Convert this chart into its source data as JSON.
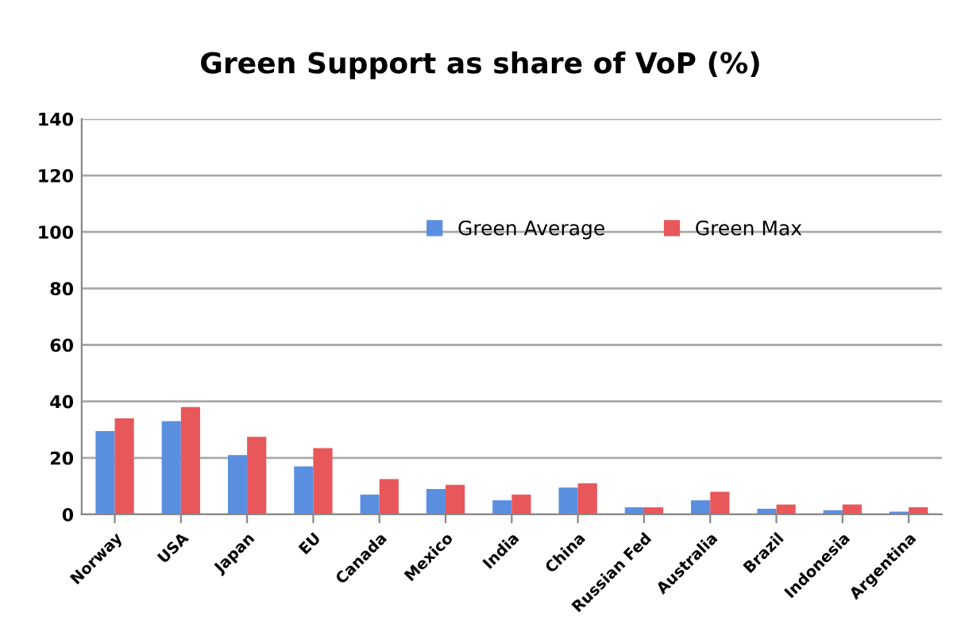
{
  "chart_data": {
    "type": "bar",
    "title": "Green Support as share of VoP (%)",
    "categories": [
      "Norway",
      "USA",
      "Japan",
      "EU",
      "Canada",
      "Mexico",
      "India",
      "China",
      "Russian Fed",
      "Australia",
      "Brazil",
      "Indonesia",
      "Argentina"
    ],
    "series": [
      {
        "name": "Green Average",
        "color": "#5a8fe0",
        "values": [
          29.5,
          33,
          21,
          17,
          7,
          9,
          5,
          9.5,
          2.5,
          5,
          2,
          1.5,
          1
        ]
      },
      {
        "name": "Green Max",
        "color": "#e8575a",
        "values": [
          34,
          38,
          27.5,
          23.5,
          12.5,
          10.5,
          7,
          11,
          2.5,
          8,
          3.5,
          3.5,
          2.5
        ]
      }
    ],
    "ylim": [
      0,
      140
    ],
    "yticks": [
      0,
      20,
      40,
      60,
      80,
      100,
      120,
      140
    ],
    "grid": "y",
    "legend": "top"
  }
}
